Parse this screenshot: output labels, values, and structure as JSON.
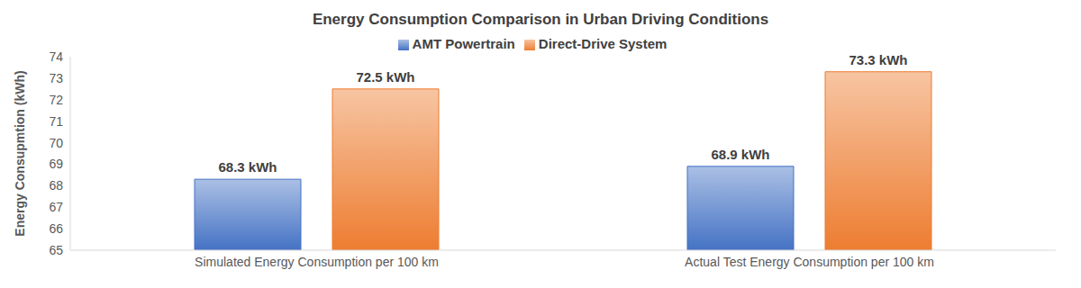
{
  "chart_data": {
    "type": "bar",
    "title": "Energy Consumption Comparison in Urban Driving Conditions",
    "ylabel": "Energy Consupmtion (kWh)",
    "categories": [
      "Simulated Energy Consumption per 100 km",
      "Actual Test Energy Consumption per 100 km"
    ],
    "series": [
      {
        "name": "AMT Powertrain",
        "color": "#4472c4",
        "values": [
          68.3,
          68.9
        ],
        "value_labels": [
          "68.3 kWh",
          "68.9 kWh"
        ]
      },
      {
        "name": "Direct-Drive System",
        "color": "#ed7d31",
        "values": [
          72.5,
          73.3
        ],
        "value_labels": [
          "72.5 kWh",
          "73.3 kWh"
        ]
      }
    ],
    "ylim": [
      65,
      74
    ],
    "yticks": [
      65,
      66,
      67,
      68,
      69,
      70,
      71,
      72,
      73,
      74
    ],
    "grid": false,
    "legend": "top",
    "data_labels": true
  }
}
